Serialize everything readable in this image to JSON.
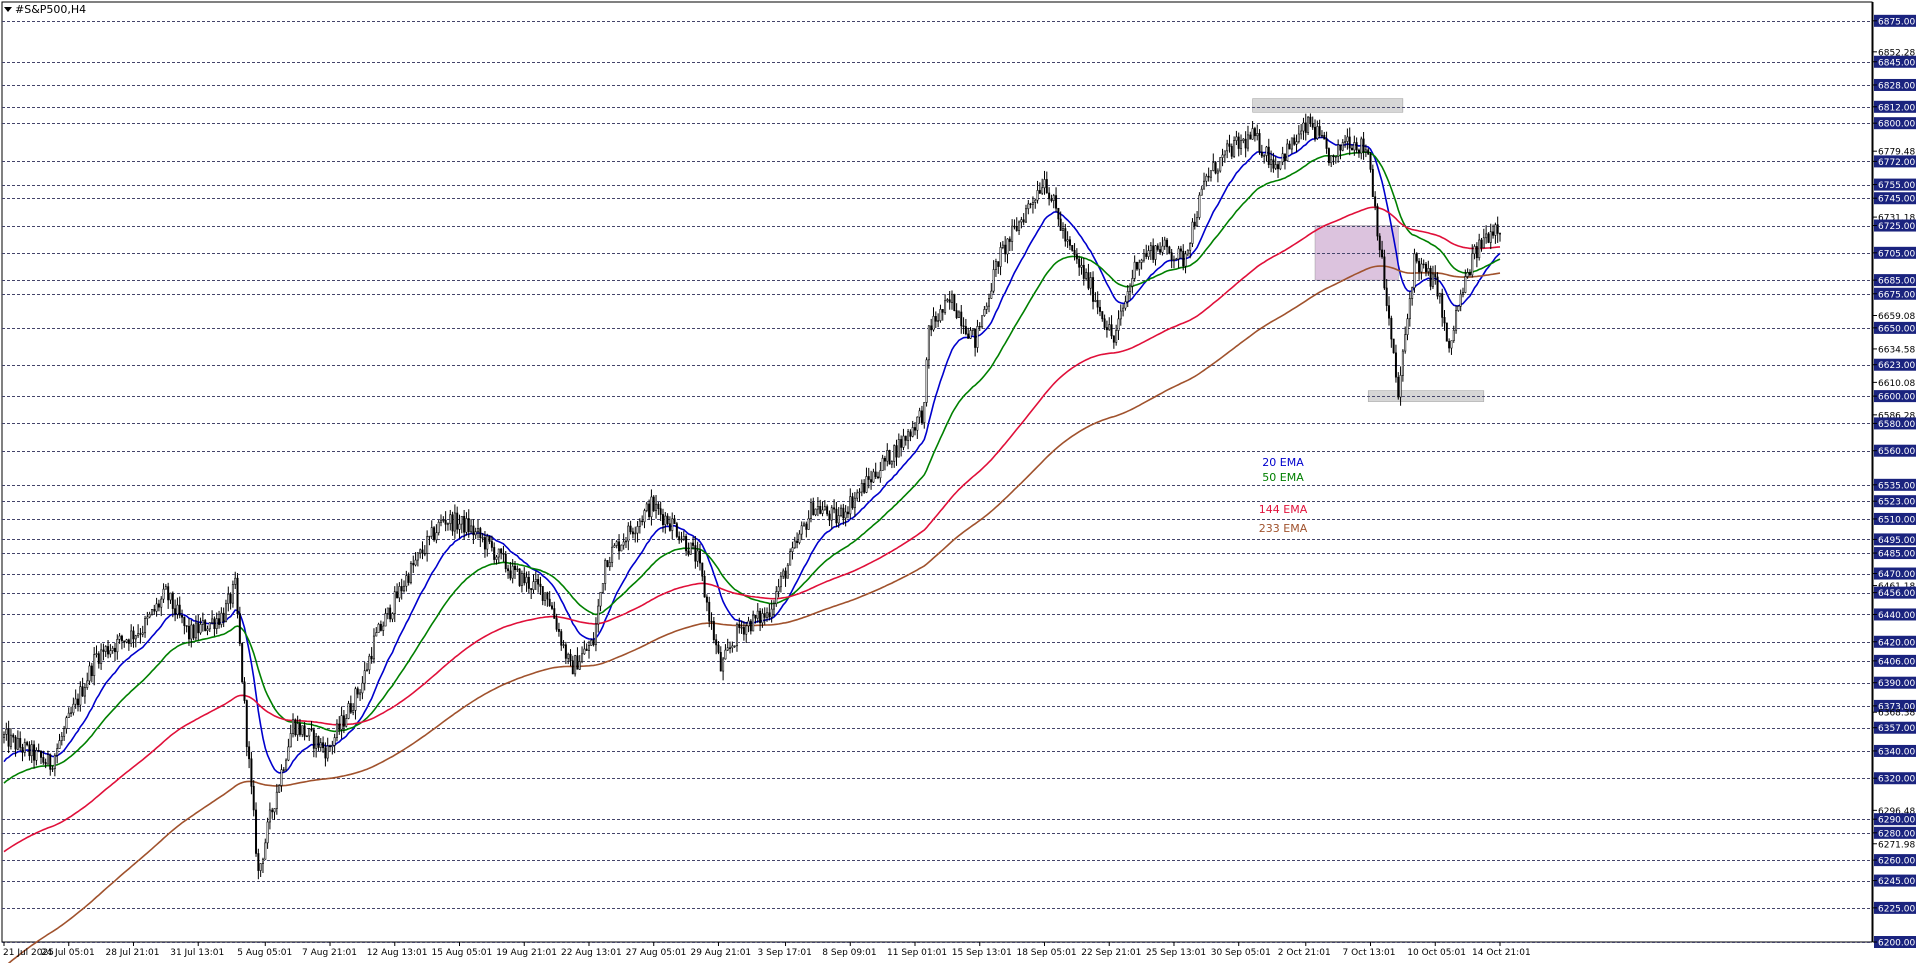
{
  "symbol_title": "#S&P500,H4",
  "colors": {
    "ema20": "#0000cd",
    "ema50": "#008000",
    "ema144": "#e0103a",
    "ema233": "#a0522d",
    "candle": "#000000",
    "grid": "#44446a",
    "level_box": "#b5b5b5",
    "price_label_bg": "#1a237e",
    "zone_box": "#c9a3cc"
  },
  "chart_data": {
    "type": "candlestick",
    "title": "#S&P500,H4",
    "ylim": [
      6200,
      6880
    ],
    "x_ticks": [
      "21 Jul 2025",
      "24 Jul 05:01",
      "28 Jul 21:01",
      "31 Jul 13:01",
      "5 Aug 05:01",
      "7 Aug 21:01",
      "12 Aug 13:01",
      "15 Aug 05:01",
      "19 Aug 21:01",
      "22 Aug 13:01",
      "27 Aug 05:01",
      "29 Aug 21:01",
      "3 Sep 17:01",
      "8 Sep 09:01",
      "11 Sep 01:01",
      "15 Sep 13:01",
      "18 Sep 05:01",
      "22 Sep 21:01",
      "25 Sep 13:01",
      "30 Sep 05:01",
      "2 Oct 21:01",
      "7 Oct 13:01",
      "10 Oct 05:01",
      "14 Oct 21:01"
    ],
    "y_ticks": [
      6875.0,
      6852.28,
      6845.0,
      6828.0,
      6812.0,
      6800.0,
      6779.48,
      6772.0,
      6755.0,
      6745.0,
      6731.18,
      6725.0,
      6705.0,
      6685.0,
      6675.0,
      6659.08,
      6650.0,
      6634.58,
      6623.0,
      6610.08,
      6600.0,
      6586.28,
      6580.0,
      6560.0,
      6535.0,
      6523.0,
      6510.0,
      6495.0,
      6485.0,
      6470.0,
      6461.18,
      6456.0,
      6440.0,
      6420.0,
      6406.0,
      6390.0,
      6373.0,
      6368.38,
      6357.0,
      6340.0,
      6320.0,
      6296.48,
      6290.0,
      6280.0,
      6271.98,
      6260.0,
      6245.0,
      6225.0,
      6200.0
    ],
    "highlighted_levels": [
      6875.0,
      6845.0,
      6828.0,
      6812.0,
      6800.0,
      6772.0,
      6755.0,
      6745.0,
      6725.0,
      6705.0,
      6685.0,
      6675.0,
      6650.0,
      6623.0,
      6600.0,
      6580.0,
      6560.0,
      6535.0,
      6523.0,
      6510.0,
      6495.0,
      6485.0,
      6470.0,
      6456.0,
      6440.0,
      6420.0,
      6406.0,
      6390.0,
      6373.0,
      6357.0,
      6340.0,
      6320.0,
      6290.0,
      6280.0,
      6260.0,
      6245.0,
      6225.0,
      6200.0
    ],
    "price_anchors": [
      [
        0,
        6350
      ],
      [
        20,
        6330
      ],
      [
        40,
        6410
      ],
      [
        60,
        6430
      ],
      [
        70,
        6455
      ],
      [
        80,
        6425
      ],
      [
        95,
        6440
      ],
      [
        100,
        6460
      ],
      [
        105,
        6350
      ],
      [
        110,
        6250
      ],
      [
        115,
        6290
      ],
      [
        125,
        6360
      ],
      [
        140,
        6340
      ],
      [
        155,
        6390
      ],
      [
        160,
        6420
      ],
      [
        175,
        6470
      ],
      [
        190,
        6510
      ],
      [
        200,
        6505
      ],
      [
        210,
        6490
      ],
      [
        220,
        6470
      ],
      [
        235,
        6455
      ],
      [
        245,
        6400
      ],
      [
        255,
        6420
      ],
      [
        260,
        6480
      ],
      [
        270,
        6500
      ],
      [
        280,
        6520
      ],
      [
        290,
        6505
      ],
      [
        300,
        6480
      ],
      [
        310,
        6400
      ],
      [
        318,
        6430
      ],
      [
        330,
        6440
      ],
      [
        340,
        6480
      ],
      [
        350,
        6520
      ],
      [
        360,
        6510
      ],
      [
        370,
        6530
      ],
      [
        380,
        6550
      ],
      [
        390,
        6570
      ],
      [
        398,
        6590
      ],
      [
        400,
        6650
      ],
      [
        410,
        6670
      ],
      [
        420,
        6640
      ],
      [
        430,
        6700
      ],
      [
        440,
        6730
      ],
      [
        450,
        6760
      ],
      [
        460,
        6710
      ],
      [
        470,
        6680
      ],
      [
        480,
        6640
      ],
      [
        490,
        6700
      ],
      [
        500,
        6710
      ],
      [
        510,
        6700
      ],
      [
        520,
        6760
      ],
      [
        530,
        6780
      ],
      [
        540,
        6790
      ],
      [
        550,
        6770
      ],
      [
        560,
        6790
      ],
      [
        565,
        6800
      ],
      [
        575,
        6770
      ],
      [
        580,
        6790
      ],
      [
        590,
        6780
      ],
      [
        600,
        6640
      ],
      [
        603,
        6600
      ],
      [
        610,
        6700
      ],
      [
        620,
        6680
      ],
      [
        625,
        6630
      ],
      [
        628,
        6660
      ],
      [
        635,
        6700
      ],
      [
        640,
        6715
      ],
      [
        645,
        6725
      ]
    ],
    "series": [
      {
        "name": "20 EMA",
        "period": 20
      },
      {
        "name": "50 EMA",
        "period": 50
      },
      {
        "name": "144 EMA",
        "period": 144
      },
      {
        "name": "233 EMA",
        "period": 233
      }
    ],
    "ema_warmup_start": [
      {
        "name": "20 EMA",
        "value": 6330
      },
      {
        "name": "50 EMA",
        "value": 6315
      },
      {
        "name": "144 EMA",
        "value": 6265
      },
      {
        "name": "233 EMA",
        "value": 6180
      }
    ],
    "zones": [
      {
        "from_bar": 540,
        "to_bar": 605,
        "low": 6808,
        "high": 6818,
        "color": "gray"
      },
      {
        "from_bar": 567,
        "to_bar": 603,
        "low": 6685,
        "high": 6725,
        "color": "purple"
      },
      {
        "from_bar": 590,
        "to_bar": 640,
        "low": 6596,
        "high": 6604,
        "color": "gray"
      }
    ]
  },
  "legend": {
    "ema20": "20 EMA",
    "ema50": "50 EMA",
    "ema144": "144 EMA",
    "ema233": "233 EMA"
  }
}
